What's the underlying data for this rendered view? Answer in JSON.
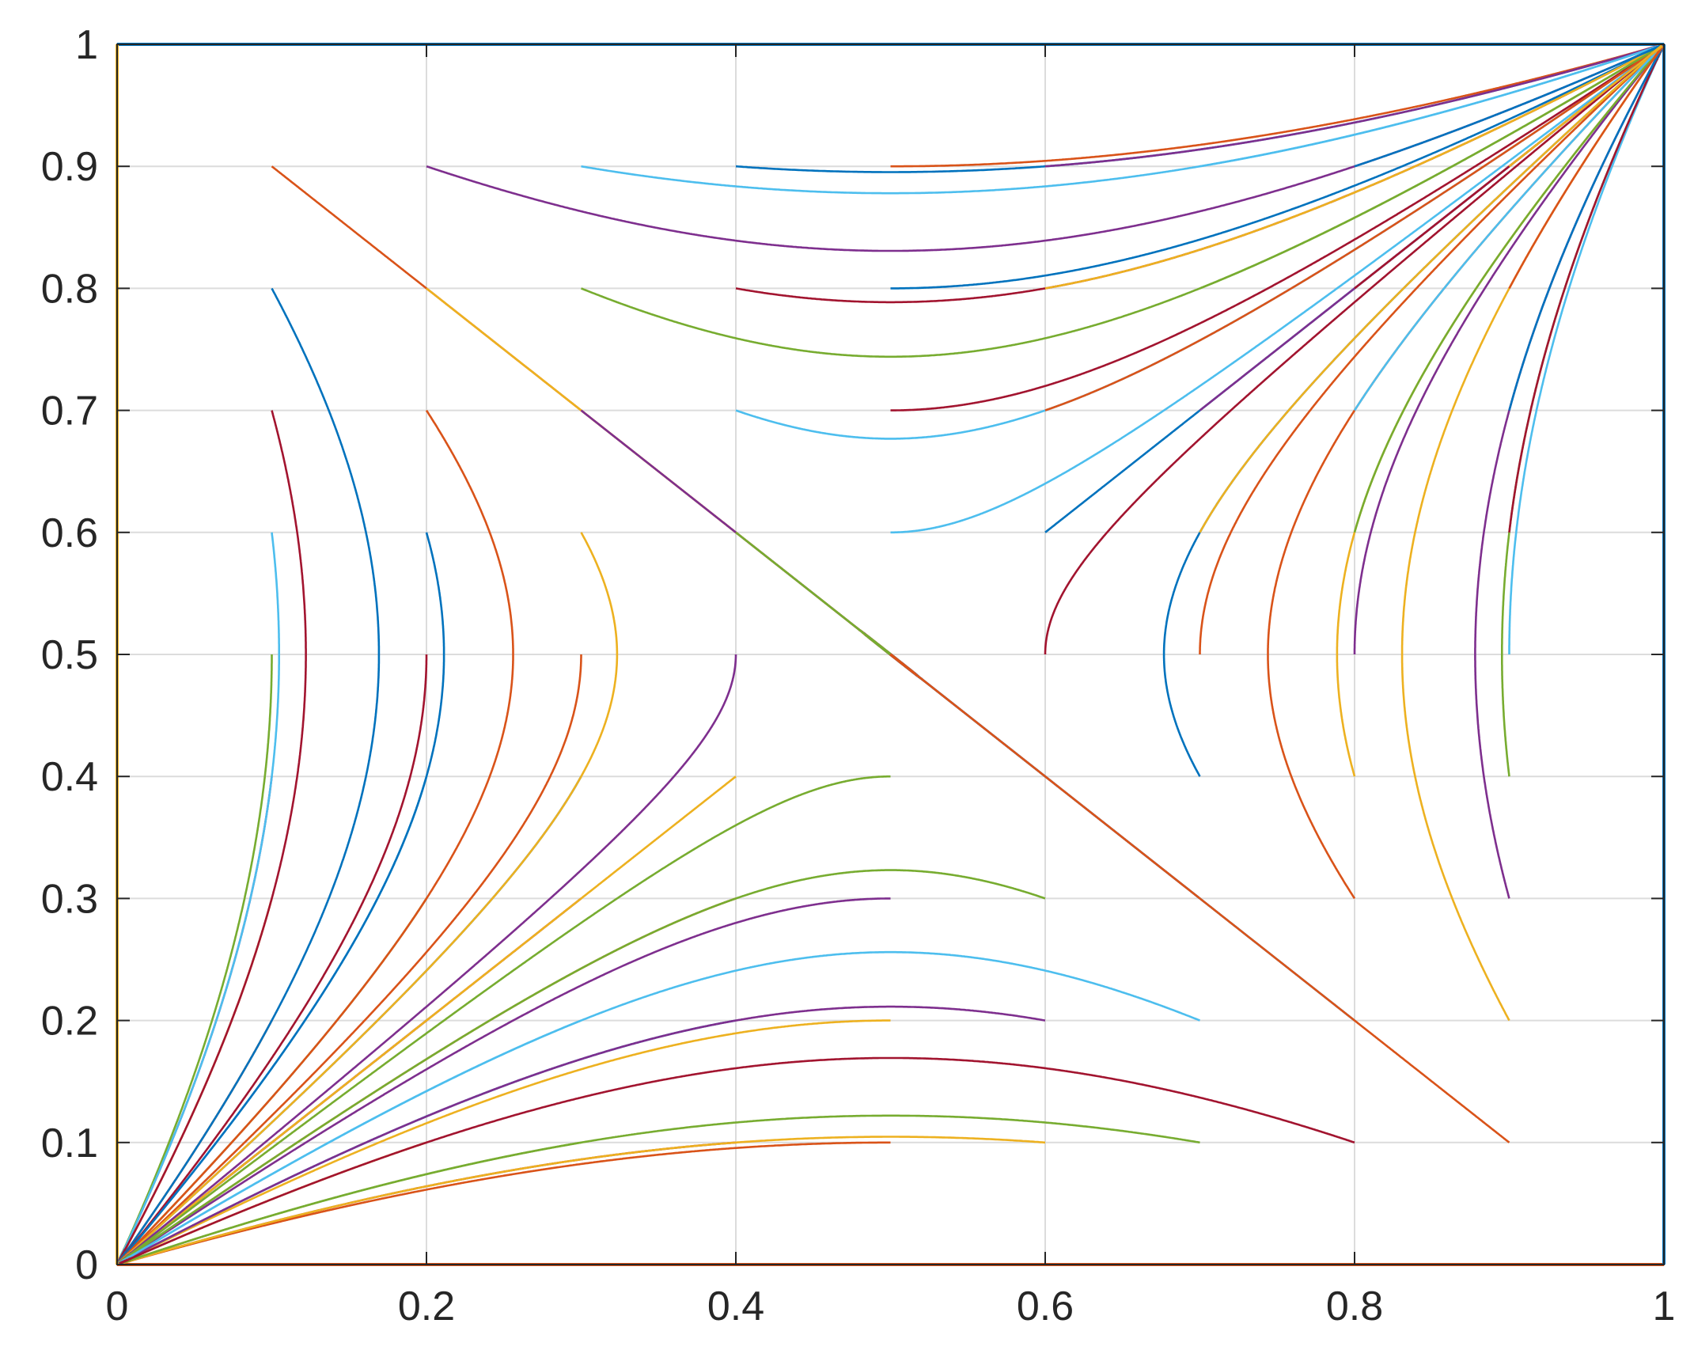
{
  "chart_data": {
    "type": "line",
    "title": "",
    "xlabel": "",
    "ylabel": "",
    "xlim": [
      0,
      1
    ],
    "ylim": [
      0,
      1
    ],
    "xticks": [
      0,
      0.2,
      0.4,
      0.6,
      0.8,
      1
    ],
    "yticks": [
      0,
      0.1,
      0.2,
      0.3,
      0.4,
      0.5,
      0.6,
      0.7,
      0.8,
      0.9,
      1
    ],
    "xtick_labels": [
      "0",
      "0.2",
      "0.4",
      "0.6",
      "0.8",
      "1"
    ],
    "ytick_labels": [
      "0",
      "0.1",
      "0.2",
      "0.3",
      "0.4",
      "0.5",
      "0.6",
      "0.7",
      "0.8",
      "0.9",
      "1"
    ],
    "grid": true,
    "colors": [
      "#0072BD",
      "#D95319",
      "#EDB120",
      "#7E2F8E",
      "#77AC30",
      "#4DBEEE",
      "#A2142F"
    ],
    "model": "trajectories of dx/dt = x(1-x)(y-1/2), dy/dt = y(1-y)(x-1/2) from grid starting points",
    "start_points": [
      [
        0.1,
        0.1
      ],
      [
        0.1,
        0.2
      ],
      [
        0.1,
        0.3
      ],
      [
        0.1,
        0.4
      ],
      [
        0.1,
        0.5
      ],
      [
        0.1,
        0.6
      ],
      [
        0.1,
        0.7
      ],
      [
        0.1,
        0.8
      ],
      [
        0.1,
        0.9
      ],
      [
        0.2,
        0.1
      ],
      [
        0.2,
        0.2
      ],
      [
        0.2,
        0.3
      ],
      [
        0.2,
        0.4
      ],
      [
        0.2,
        0.5
      ],
      [
        0.2,
        0.6
      ],
      [
        0.2,
        0.7
      ],
      [
        0.2,
        0.8
      ],
      [
        0.2,
        0.9
      ],
      [
        0.3,
        0.1
      ],
      [
        0.3,
        0.2
      ],
      [
        0.3,
        0.3
      ],
      [
        0.3,
        0.4
      ],
      [
        0.3,
        0.5
      ],
      [
        0.3,
        0.6
      ],
      [
        0.3,
        0.7
      ],
      [
        0.3,
        0.8
      ],
      [
        0.3,
        0.9
      ],
      [
        0.4,
        0.1
      ],
      [
        0.4,
        0.2
      ],
      [
        0.4,
        0.3
      ],
      [
        0.4,
        0.4
      ],
      [
        0.4,
        0.5
      ],
      [
        0.4,
        0.6
      ],
      [
        0.4,
        0.7
      ],
      [
        0.4,
        0.8
      ],
      [
        0.4,
        0.9
      ],
      [
        0.5,
        0.1
      ],
      [
        0.5,
        0.2
      ],
      [
        0.5,
        0.3
      ],
      [
        0.5,
        0.4
      ],
      [
        0.5,
        0.6
      ],
      [
        0.5,
        0.7
      ],
      [
        0.5,
        0.8
      ],
      [
        0.5,
        0.9
      ],
      [
        0.6,
        0.1
      ],
      [
        0.6,
        0.2
      ],
      [
        0.6,
        0.3
      ],
      [
        0.6,
        0.4
      ],
      [
        0.6,
        0.5
      ],
      [
        0.6,
        0.6
      ],
      [
        0.6,
        0.7
      ],
      [
        0.6,
        0.8
      ],
      [
        0.6,
        0.9
      ],
      [
        0.7,
        0.1
      ],
      [
        0.7,
        0.2
      ],
      [
        0.7,
        0.3
      ],
      [
        0.7,
        0.4
      ],
      [
        0.7,
        0.5
      ],
      [
        0.7,
        0.6
      ],
      [
        0.7,
        0.7
      ],
      [
        0.7,
        0.8
      ],
      [
        0.7,
        0.9
      ],
      [
        0.8,
        0.1
      ],
      [
        0.8,
        0.2
      ],
      [
        0.8,
        0.3
      ],
      [
        0.8,
        0.4
      ],
      [
        0.8,
        0.5
      ],
      [
        0.8,
        0.6
      ],
      [
        0.8,
        0.7
      ],
      [
        0.8,
        0.8
      ],
      [
        0.8,
        0.9
      ],
      [
        0.9,
        0.1
      ],
      [
        0.9,
        0.2
      ],
      [
        0.9,
        0.3
      ],
      [
        0.9,
        0.4
      ],
      [
        0.9,
        0.5
      ],
      [
        0.9,
        0.6
      ],
      [
        0.9,
        0.7
      ],
      [
        0.9,
        0.8
      ],
      [
        0.9,
        0.9
      ]
    ],
    "boundary_lines": [
      {
        "from": [
          0,
          0
        ],
        "to": [
          1,
          0
        ],
        "color": "#D95319"
      },
      {
        "from": [
          0,
          1
        ],
        "to": [
          1,
          1
        ],
        "color": "#0072BD"
      },
      {
        "from": [
          0,
          0
        ],
        "to": [
          0,
          1
        ],
        "color": "#EDB120"
      },
      {
        "from": [
          1,
          0
        ],
        "to": [
          1,
          1
        ],
        "color": "#0072BD"
      }
    ]
  }
}
